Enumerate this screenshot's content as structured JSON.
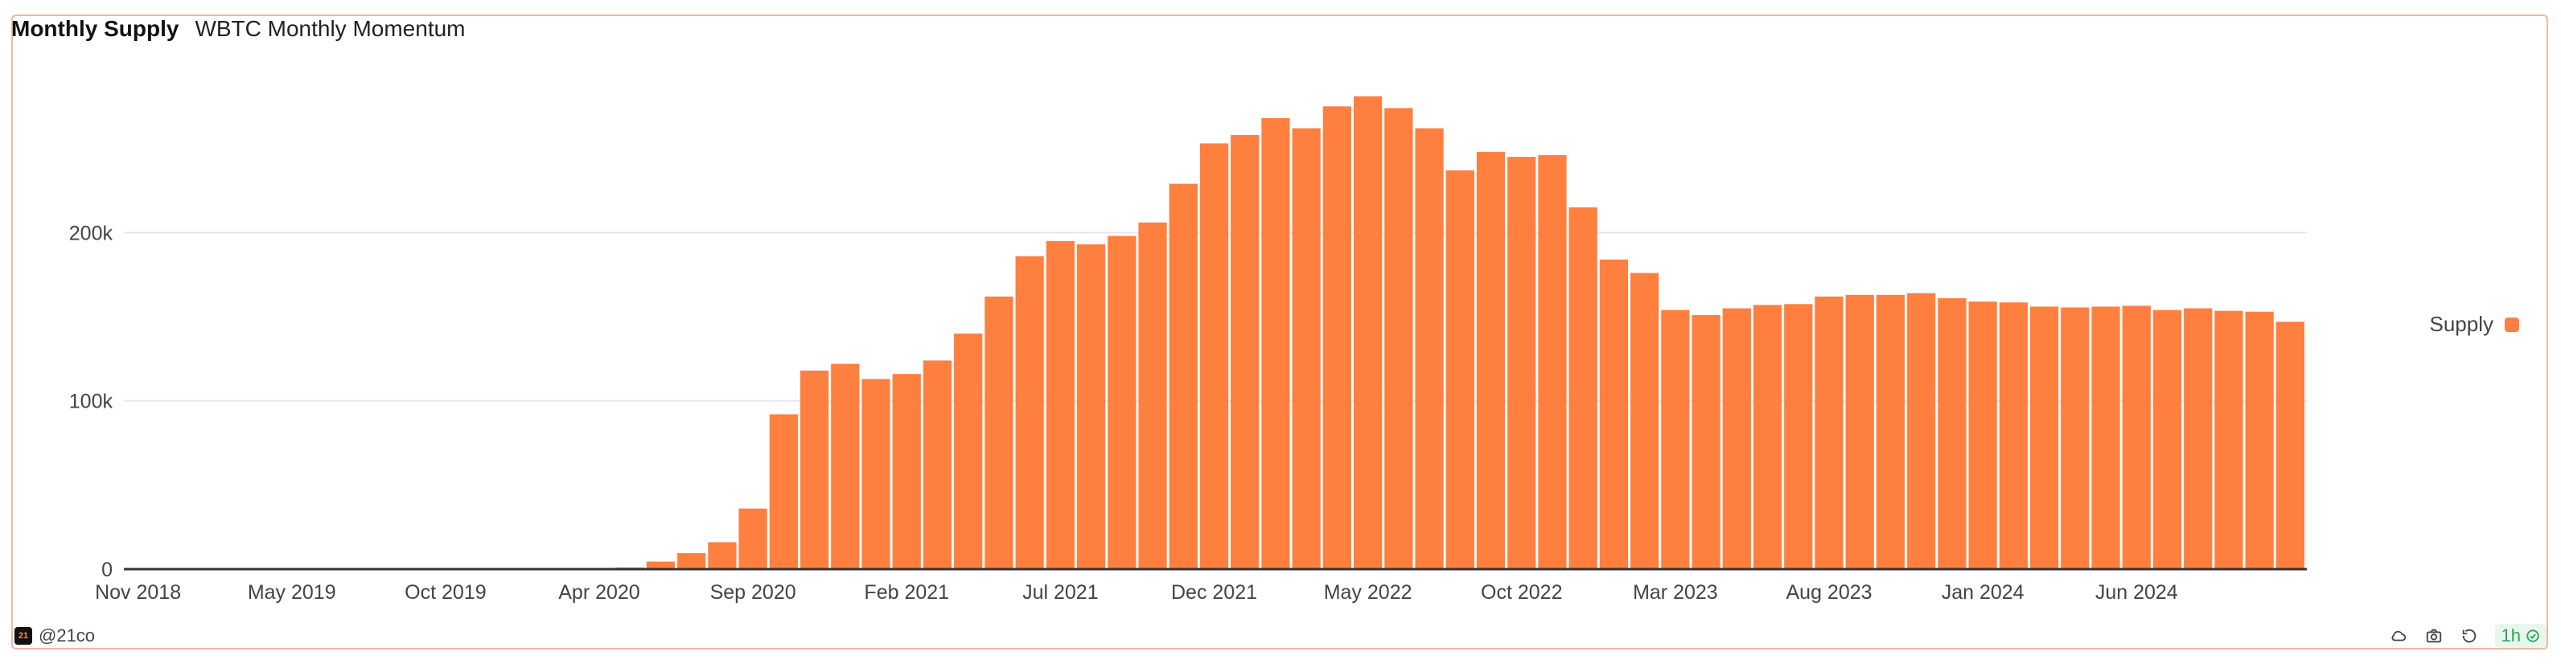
{
  "header": {
    "title": "Monthly Supply",
    "subtitle": "WBTC Monthly Momentum"
  },
  "footer": {
    "handle": "@21co",
    "refresh_label": "1h"
  },
  "colors": {
    "bar": "#ff7f3f",
    "axis": "#333333",
    "grid": "#e6e6e6"
  },
  "icons": [
    "cloud-icon",
    "camera-icon",
    "reset-icon",
    "check-circle-icon"
  ],
  "chart_data": {
    "type": "bar",
    "title": "Monthly Supply",
    "subtitle": "WBTC Monthly Momentum",
    "ylim": [
      0,
      300000
    ],
    "yticks": [
      0,
      100000,
      200000
    ],
    "ytick_labels": [
      "0",
      "100k",
      "200k"
    ],
    "xtick_labels": [
      "Nov 2018",
      "May 2019",
      "Oct 2019",
      "Apr 2020",
      "Sep 2020",
      "Feb 2021",
      "Jul 2021",
      "Dec 2021",
      "May 2022",
      "Oct 2022",
      "Mar 2023",
      "Aug 2023",
      "Jan 2024",
      "Jun 2024"
    ],
    "xtick_indices": [
      0,
      5,
      10,
      15,
      20,
      25,
      30,
      35,
      40,
      45,
      50,
      55,
      60,
      65
    ],
    "grid": true,
    "legend": "right",
    "series": [
      {
        "name": "Supply",
        "values": [
          700,
          700,
          700,
          700,
          700,
          700,
          700,
          700,
          700,
          700,
          700,
          700,
          700,
          700,
          700,
          700,
          1000,
          4500,
          9500,
          16000,
          36000,
          92000,
          118000,
          122000,
          113000,
          116000,
          124000,
          140000,
          162000,
          186000,
          195000,
          193000,
          198000,
          206000,
          229000,
          253000,
          258000,
          268000,
          262000,
          275000,
          281000,
          274000,
          262000,
          237000,
          248000,
          245000,
          246000,
          215000,
          184000,
          176000,
          154000,
          151000,
          155000,
          157000,
          157500,
          162000,
          163000,
          163000,
          164000,
          161000,
          159000,
          158500,
          156000,
          155500,
          156000,
          156500,
          154000,
          155000,
          153500,
          153000,
          147000
        ]
      }
    ]
  }
}
